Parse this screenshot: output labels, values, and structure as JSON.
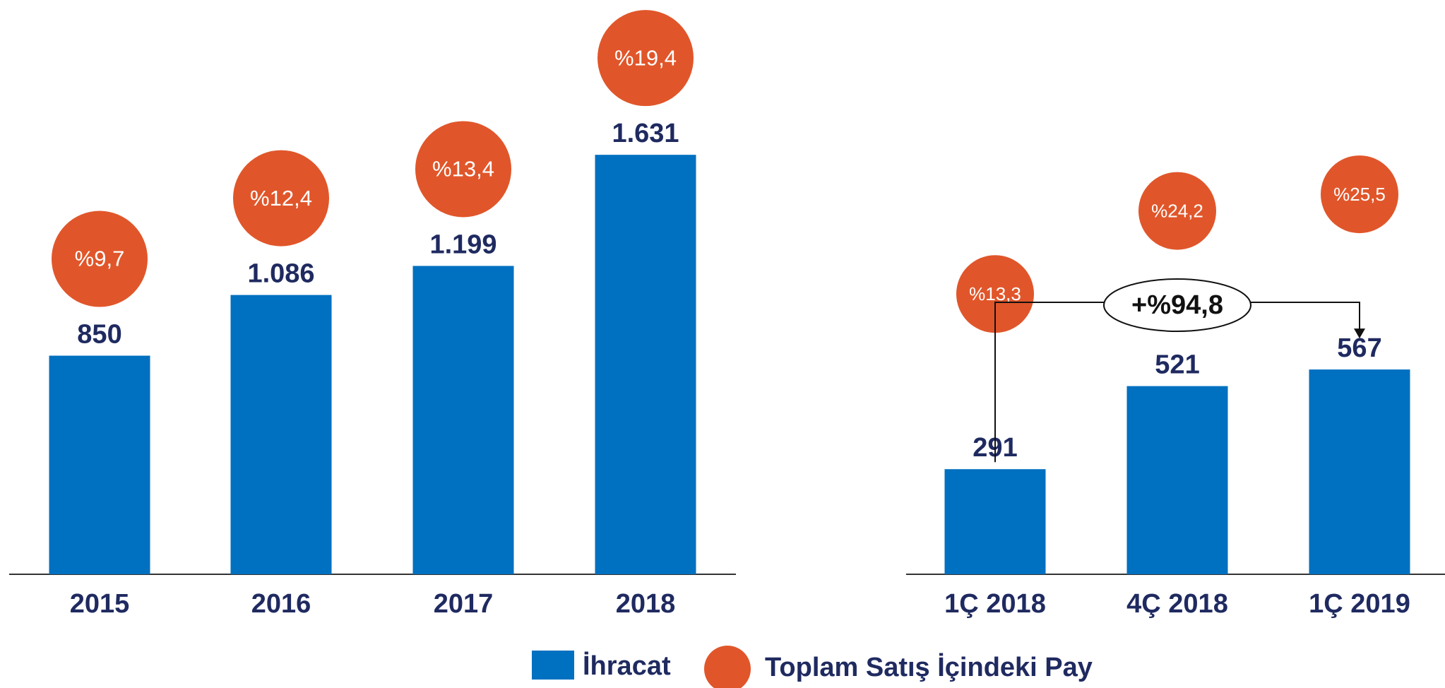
{
  "chart_data": [
    {
      "type": "bar",
      "categories": [
        "2015",
        "2016",
        "2017",
        "2018"
      ],
      "values": [
        850,
        1086,
        1199,
        1631
      ],
      "value_labels": [
        "850",
        "1.086",
        "1.199",
        "1.631"
      ],
      "share_values": [
        9.7,
        12.4,
        13.4,
        19.4
      ],
      "share_labels": [
        "%9,7",
        "%12,4",
        "%13,4",
        "%19,4"
      ],
      "ylim": [
        0,
        2233
      ]
    },
    {
      "type": "bar",
      "categories": [
        "1Ç 2018",
        "4Ç 2018",
        "1Ç 2019"
      ],
      "values": [
        291,
        521,
        567
      ],
      "value_labels": [
        "291",
        "521",
        "567"
      ],
      "share_values": [
        13.3,
        24.2,
        25.5
      ],
      "share_labels": [
        "%13,3",
        "%24,2",
        "%25,5"
      ],
      "ylim": [
        0,
        1590
      ],
      "annotation": "+%94,8"
    }
  ],
  "legend": [
    {
      "name": "İhracat",
      "color": "#0070c0"
    },
    {
      "name": "Toplam Satış İçindeki Pay",
      "color": "#e0562a"
    }
  ]
}
